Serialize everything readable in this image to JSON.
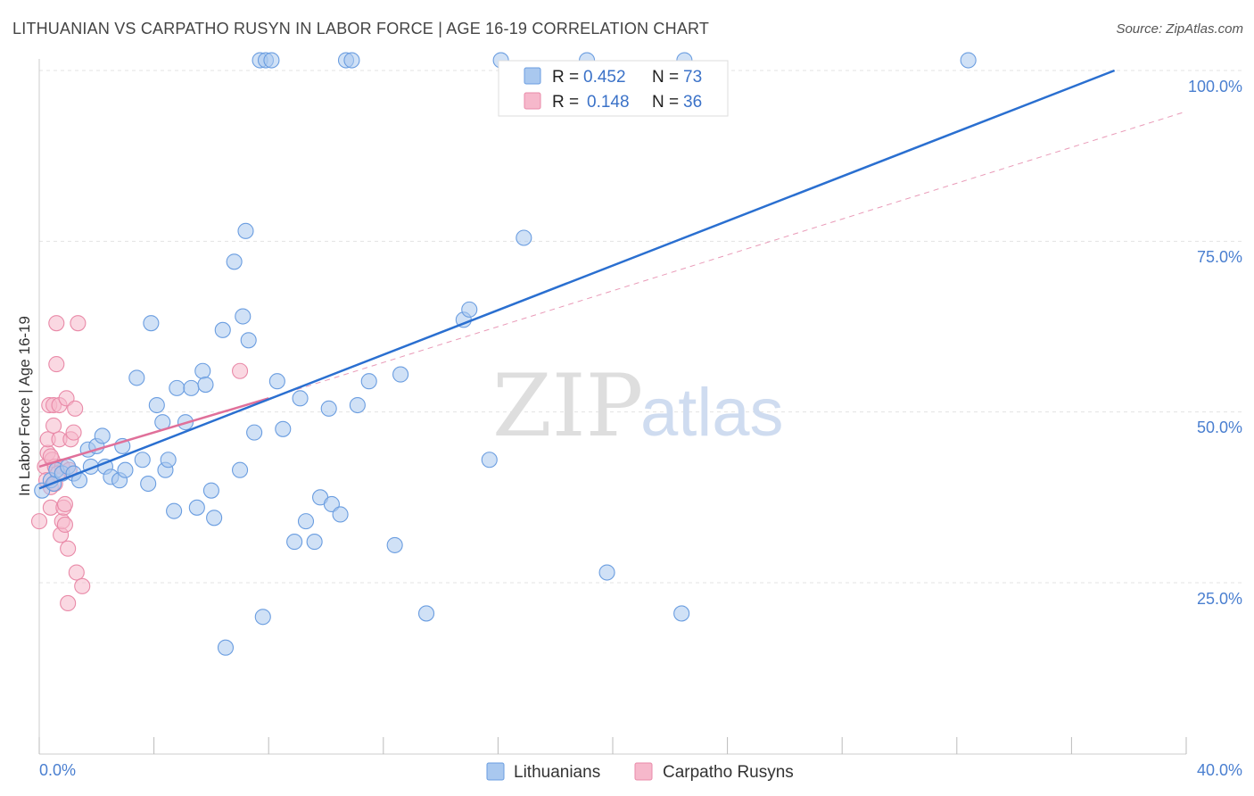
{
  "title": "LITHUANIAN VS CARPATHO RUSYN IN LABOR FORCE | AGE 16-19 CORRELATION CHART",
  "source": "Source: ZipAtlas.com",
  "watermark": {
    "zip": "ZIP",
    "atlas": "atlas"
  },
  "colors": {
    "blue_fill": "#a9c8ef",
    "blue_stroke": "#6a9de0",
    "blue_line": "#2a6fd0",
    "pink_fill": "#f6b8cb",
    "pink_stroke": "#e98aa8",
    "pink_line": "#e0709a",
    "grid": "#e3e3e3",
    "axis_text": "#4a7fd0"
  },
  "legend": {
    "rows": [
      {
        "r_label": "R =",
        "r_value": "0.452",
        "n_label": "N =",
        "n_value": "73"
      },
      {
        "r_label": "R =",
        "r_value": "0.148",
        "n_label": "N =",
        "n_value": "36"
      }
    ]
  },
  "bottom_legend": [
    "Lithuanians",
    "Carpatho Rusyns"
  ],
  "chart_data": {
    "type": "scatter",
    "title": "LITHUANIAN VS CARPATHO RUSYN IN LABOR FORCE | AGE 16-19 CORRELATION CHART",
    "xlabel": "",
    "ylabel": "In Labor Force | Age 16-19",
    "xlim": [
      0,
      40
    ],
    "ylim": [
      0,
      102
    ],
    "x_tick_labels": [
      "0.0%",
      "40.0%"
    ],
    "y_tick_labels": [
      "25.0%",
      "50.0%",
      "75.0%",
      "100.0%"
    ],
    "y_ticks": [
      25,
      50,
      75,
      100
    ],
    "x_minor_ticks": [
      0,
      4,
      8,
      12,
      16,
      20,
      24,
      28,
      32,
      36,
      40
    ],
    "series": [
      {
        "name": "Lithuanians",
        "R": 0.452,
        "N": 73,
        "trend": {
          "x0": 0,
          "y0": 38.8,
          "x1": 37.5,
          "y1": 100
        },
        "points": [
          [
            0.1,
            38.5
          ],
          [
            0.4,
            40
          ],
          [
            0.5,
            39.5
          ],
          [
            0.6,
            41.5
          ],
          [
            0.8,
            41
          ],
          [
            1.0,
            42
          ],
          [
            1.2,
            41
          ],
          [
            1.4,
            40
          ],
          [
            1.7,
            44.5
          ],
          [
            1.8,
            42
          ],
          [
            2.0,
            45
          ],
          [
            2.2,
            46.5
          ],
          [
            2.3,
            42
          ],
          [
            2.5,
            40.5
          ],
          [
            2.8,
            40
          ],
          [
            3.0,
            41.5
          ],
          [
            3.4,
            55
          ],
          [
            3.6,
            43
          ],
          [
            3.8,
            39.5
          ],
          [
            3.9,
            63
          ],
          [
            4.1,
            51
          ],
          [
            4.3,
            48.5
          ],
          [
            4.4,
            41.5
          ],
          [
            4.7,
            35.5
          ],
          [
            4.8,
            53.5
          ],
          [
            5.1,
            48.5
          ],
          [
            5.3,
            53.5
          ],
          [
            5.5,
            36
          ],
          [
            5.7,
            56
          ],
          [
            5.8,
            54
          ],
          [
            6.0,
            38.5
          ],
          [
            6.1,
            34.5
          ],
          [
            6.4,
            62
          ],
          [
            6.8,
            72
          ],
          [
            7.0,
            41.5
          ],
          [
            7.1,
            64
          ],
          [
            7.2,
            76.5
          ],
          [
            7.3,
            60.5
          ],
          [
            7.5,
            47
          ],
          [
            7.7,
            101.5
          ],
          [
            7.9,
            101.5
          ],
          [
            7.8,
            20
          ],
          [
            8.1,
            101.5
          ],
          [
            8.3,
            54.5
          ],
          [
            8.5,
            47.5
          ],
          [
            8.9,
            31
          ],
          [
            9.1,
            52
          ],
          [
            9.3,
            34
          ],
          [
            9.6,
            31
          ],
          [
            9.8,
            37.5
          ],
          [
            10.1,
            50.5
          ],
          [
            10.2,
            36.5
          ],
          [
            10.5,
            35
          ],
          [
            10.7,
            101.5
          ],
          [
            10.9,
            101.5
          ],
          [
            11.1,
            51
          ],
          [
            11.5,
            54.5
          ],
          [
            12.4,
            30.5
          ],
          [
            12.6,
            55.5
          ],
          [
            13.5,
            20.5
          ],
          [
            14.8,
            63.5
          ],
          [
            15.0,
            65
          ],
          [
            15.7,
            43
          ],
          [
            16.1,
            101.5
          ],
          [
            16.9,
            75.5
          ],
          [
            19.1,
            101.5
          ],
          [
            19.8,
            26.5
          ],
          [
            22.4,
            20.5
          ],
          [
            22.5,
            101.5
          ],
          [
            32.4,
            101.5
          ],
          [
            6.5,
            15.5
          ],
          [
            4.5,
            43
          ],
          [
            2.9,
            45
          ]
        ]
      },
      {
        "name": "Carpatho Rusyns",
        "R": 0.148,
        "N": 36,
        "trend": {
          "x0": 0,
          "y0": 42,
          "x1": 8,
          "y1": 52
        },
        "trend_extended": {
          "x0": 8,
          "y0": 52,
          "x1": 40,
          "y1": 94
        },
        "points": [
          [
            0.0,
            34
          ],
          [
            0.2,
            42
          ],
          [
            0.25,
            40
          ],
          [
            0.3,
            44
          ],
          [
            0.3,
            46
          ],
          [
            0.35,
            51
          ],
          [
            0.4,
            39
          ],
          [
            0.4,
            36
          ],
          [
            0.45,
            43
          ],
          [
            0.5,
            51
          ],
          [
            0.5,
            48
          ],
          [
            0.55,
            42
          ],
          [
            0.55,
            39.5
          ],
          [
            0.6,
            57
          ],
          [
            0.6,
            63
          ],
          [
            0.7,
            46
          ],
          [
            0.7,
            51
          ],
          [
            0.75,
            32
          ],
          [
            0.8,
            34
          ],
          [
            0.8,
            42
          ],
          [
            0.85,
            36
          ],
          [
            0.9,
            33.5
          ],
          [
            0.95,
            52
          ],
          [
            1.0,
            22
          ],
          [
            1.0,
            30
          ],
          [
            1.05,
            41.5
          ],
          [
            1.1,
            46
          ],
          [
            1.2,
            47
          ],
          [
            1.25,
            50.5
          ],
          [
            1.3,
            26.5
          ],
          [
            1.35,
            63
          ],
          [
            1.5,
            24.5
          ],
          [
            7.0,
            56
          ],
          [
            0.9,
            36.5
          ],
          [
            0.4,
            43.5
          ],
          [
            0.65,
            41
          ]
        ]
      }
    ]
  }
}
